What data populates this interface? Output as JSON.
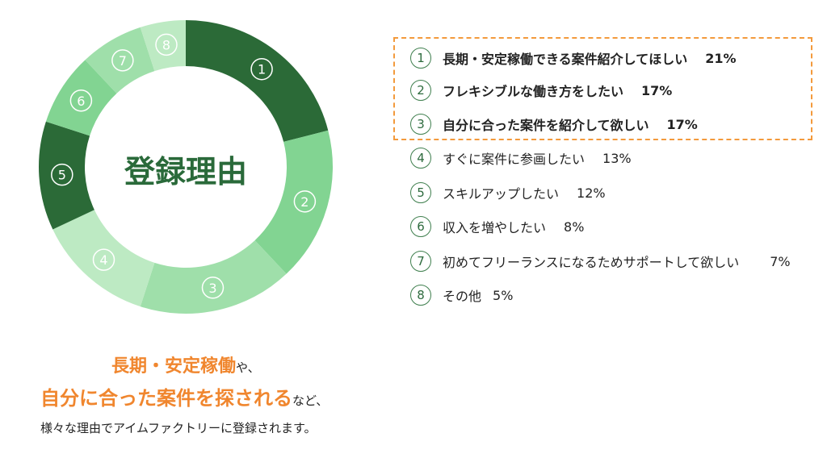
{
  "chart_data": {
    "type": "pie",
    "title": "登録理由",
    "categories": [
      "①",
      "②",
      "③",
      "④",
      "⑤",
      "⑥",
      "⑦",
      "⑧"
    ],
    "values": [
      21,
      17,
      17,
      13,
      12,
      8,
      7,
      5
    ],
    "colors": [
      "#2b6a37",
      "#82d492",
      "#9fdfaa",
      "#bdeac3",
      "#2b6a37",
      "#82d492",
      "#9fdfaa",
      "#bdeac3"
    ]
  },
  "legend": [
    {
      "num": "1",
      "label": "長期・安定稼働できる案件紹介してほしい",
      "pct": "21%"
    },
    {
      "num": "2",
      "label": "フレキシブルな働き方をしたい",
      "pct": "17%"
    },
    {
      "num": "3",
      "label": "自分に合った案件を紹介して欲しい",
      "pct": "17%"
    },
    {
      "num": "4",
      "label": "すぐに案件に参画したい",
      "pct": "13%"
    },
    {
      "num": "5",
      "label": "スキルアップしたい",
      "pct": "12%"
    },
    {
      "num": "6",
      "label": "収入を増やしたい",
      "pct": "8%"
    },
    {
      "num": "7",
      "label": "初めてフリーランスになるためサポートして欲しい",
      "pct": "7%"
    },
    {
      "num": "8",
      "label": "その他",
      "pct": "5%"
    }
  ],
  "footer": {
    "line1_highlight": "長期・安定稼働",
    "line1_tail": "や、",
    "line2_highlight": "自分に合った案件を探される",
    "line2_tail": "など、",
    "line3": "様々な理由でアイムファクトリーに登録されます。"
  }
}
